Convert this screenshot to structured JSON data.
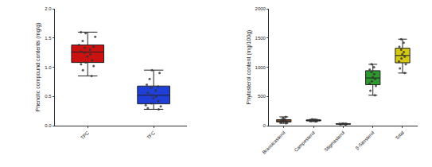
{
  "chart_data": [
    {
      "type": "box",
      "y_label": "Phenolic compound contents (mg/g)",
      "categories": [
        "TPC",
        "TFC"
      ],
      "colors": [
        "#cc1111",
        "#1f3fd6"
      ],
      "values": [
        [
          0.85,
          0.95,
          1.02,
          1.05,
          1.08,
          1.12,
          1.18,
          1.22,
          1.25,
          1.27,
          1.3,
          1.33,
          1.35,
          1.38,
          1.45,
          1.52,
          1.58,
          1.6
        ],
        [
          0.28,
          0.3,
          0.33,
          0.35,
          0.38,
          0.42,
          0.47,
          0.5,
          0.52,
          0.56,
          0.6,
          0.65,
          0.67,
          0.7,
          0.8,
          0.9,
          0.95
        ]
      ],
      "ylim": [
        0,
        2
      ],
      "yticks": [
        {
          "value": 0,
          "label": "0.0"
        },
        {
          "value": 0.5,
          "label": "0.5"
        },
        {
          "value": 1,
          "label": "1.0"
        },
        {
          "value": 1.5,
          "label": "1.5"
        },
        {
          "value": 2,
          "label": "2.0"
        }
      ],
      "grid": false
    },
    {
      "type": "box",
      "y_label": "Phytosterol content (mg/100g)",
      "categories": [
        "Brassicasterol",
        "Campesterol",
        "Stigmasterol",
        "β-Sitosterol",
        "Total"
      ],
      "colors": [
        "#b5541c",
        "#7a8a3a",
        "#8a7a9a",
        "#2e9a2e",
        "#d4c814"
      ],
      "values": [
        [
          40,
          55,
          60,
          65,
          70,
          75,
          80,
          85,
          90,
          100,
          110,
          130,
          150
        ],
        [
          70,
          78,
          82,
          86,
          90,
          94,
          98,
          102,
          108
        ],
        [
          20,
          24,
          27,
          30,
          32,
          35,
          38
        ],
        [
          520,
          600,
          680,
          720,
          760,
          800,
          830,
          880,
          920,
          960,
          1000,
          1050
        ],
        [
          900,
          980,
          1050,
          1100,
          1150,
          1180,
          1220,
          1260,
          1300,
          1350,
          1420,
          1480
        ]
      ],
      "ylim": [
        0,
        2000
      ],
      "yticks": [
        0,
        500,
        1000,
        1500,
        2000
      ],
      "grid": false
    }
  ]
}
